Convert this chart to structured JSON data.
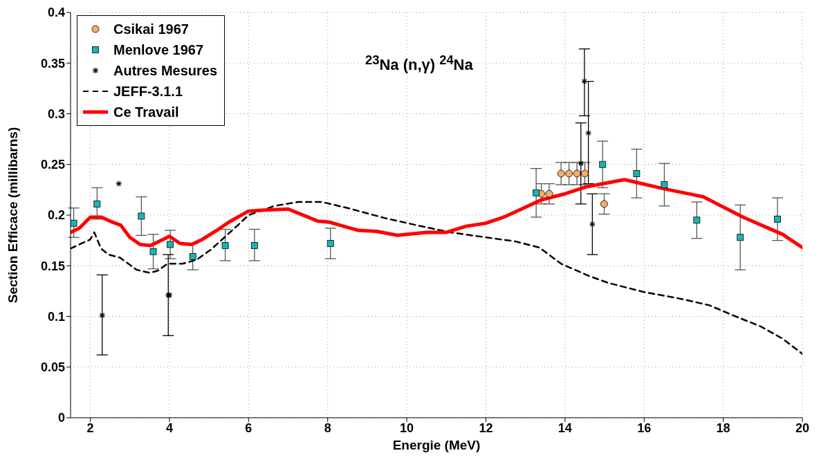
{
  "chart_data": {
    "type": "scatter",
    "title": "$^{23}$Na (n,γ) $^{24}$Na",
    "xlabel": "Energie (MeV)",
    "ylabel": "Section Efficace (millibarns)",
    "xlim": [
      1.5,
      20
    ],
    "xticks": [
      2,
      4,
      6,
      8,
      10,
      12,
      14,
      16,
      18,
      20
    ],
    "ylim": [
      0,
      0.4
    ],
    "yticks": [
      0,
      0.05,
      0.1,
      0.15,
      0.2,
      0.25,
      0.3,
      0.35,
      0.4
    ],
    "grid": true,
    "legend": "top left",
    "series": [
      {
        "name": "Csikai 1967",
        "marker": "circle",
        "color": "#f8ac66",
        "x": [
          13.4,
          13.6,
          13.9,
          14.1,
          14.3,
          14.5,
          14.99
        ],
        "values": [
          0.221,
          0.221,
          0.241,
          0.241,
          0.241,
          0.241,
          0.211
        ],
        "errors": [
          0.01,
          0.01,
          0.011,
          0.011,
          0.011,
          0.011,
          0.01
        ]
      },
      {
        "name": "Menlove 1967",
        "marker": "square",
        "color": "#17b5b5",
        "x": [
          1.58,
          2.17,
          3.29,
          3.59,
          4.02,
          4.59,
          5.41,
          6.15,
          8.07,
          13.27,
          14.95,
          15.81,
          16.51,
          17.33,
          18.43,
          19.37
        ],
        "values": [
          0.192,
          0.211,
          0.199,
          0.164,
          0.171,
          0.159,
          0.17,
          0.17,
          0.172,
          0.222,
          0.25,
          0.241,
          0.23,
          0.195,
          0.178,
          0.196
        ],
        "errors": [
          [
            0.178,
            0.207
          ],
          [
            0.196,
            0.227
          ],
          [
            0.18,
            0.218
          ],
          [
            0.147,
            0.181
          ],
          [
            0.157,
            0.185
          ],
          [
            0.146,
            0.172
          ],
          [
            0.155,
            0.186
          ],
          [
            0.155,
            0.186
          ],
          [
            0.157,
            0.187
          ],
          [
            0.198,
            0.246
          ],
          [
            0.227,
            0.273
          ],
          [
            0.217,
            0.265
          ],
          [
            0.209,
            0.251
          ],
          [
            0.177,
            0.213
          ],
          [
            0.146,
            0.21
          ],
          [
            0.175,
            0.217
          ]
        ]
      },
      {
        "name": "Autres Mesures",
        "marker": "cross",
        "color": "#000000",
        "x": [
          2.3,
          2.72,
          3.97,
          4.0,
          14.4,
          14.49,
          14.59,
          14.69
        ],
        "values": [
          0.101,
          0.231,
          0.121,
          0.121,
          0.251,
          0.332,
          0.281,
          0.191
        ],
        "errors": [
          [
            0.062,
            0.141
          ],
          null,
          [
            0.081,
            0.161
          ],
          null,
          [
            0.211,
            0.291
          ],
          [
            0.298,
            0.364
          ],
          [
            0.231,
            0.332
          ],
          [
            0.161,
            0.221
          ]
        ]
      },
      {
        "name": "JEFF-3.1.1",
        "type": "line",
        "line_style": "dashed",
        "color": "#000000",
        "x": [
          1.5,
          2.0,
          2.1,
          2.27,
          2.46,
          2.75,
          2.96,
          3.17,
          3.5,
          3.7,
          3.95,
          4.33,
          4.69,
          5.05,
          5.7,
          6.0,
          6.65,
          7.25,
          7.85,
          8.5,
          9.45,
          10.25,
          11.1,
          12.0,
          12.75,
          13.35,
          13.9,
          14.6,
          15.1,
          16.0,
          16.85,
          17.65,
          18.25,
          18.95,
          19.5,
          20
        ],
        "values": [
          0.167,
          0.176,
          0.183,
          0.167,
          0.161,
          0.158,
          0.152,
          0.146,
          0.143,
          0.145,
          0.152,
          0.152,
          0.156,
          0.166,
          0.189,
          0.2,
          0.209,
          0.213,
          0.213,
          0.207,
          0.197,
          0.19,
          0.183,
          0.178,
          0.174,
          0.168,
          0.152,
          0.14,
          0.133,
          0.124,
          0.118,
          0.111,
          0.101,
          0.09,
          0.078,
          0.063
        ]
      },
      {
        "name": "Ce Travail",
        "type": "line",
        "line_style": "solid",
        "color": "#ff0000",
        "x": [
          1.5,
          1.72,
          2.0,
          2.28,
          2.5,
          2.77,
          3.0,
          3.26,
          3.52,
          4.0,
          4.27,
          4.56,
          4.83,
          5.2,
          5.5,
          6.0,
          6.4,
          7.0,
          7.5,
          7.75,
          8.05,
          8.4,
          8.77,
          9.24,
          9.76,
          10.5,
          11.0,
          11.5,
          12.0,
          12.45,
          12.9,
          13.4,
          14.0,
          14.55,
          15.5,
          16.5,
          17.5,
          18.5,
          19.5,
          20
        ],
        "values": [
          0.183,
          0.187,
          0.198,
          0.198,
          0.194,
          0.19,
          0.178,
          0.171,
          0.17,
          0.179,
          0.172,
          0.171,
          0.176,
          0.185,
          0.193,
          0.204,
          0.205,
          0.206,
          0.198,
          0.194,
          0.193,
          0.189,
          0.185,
          0.184,
          0.18,
          0.183,
          0.183,
          0.189,
          0.192,
          0.198,
          0.206,
          0.215,
          0.221,
          0.228,
          0.235,
          0.226,
          0.218,
          0.198,
          0.181,
          0.168
        ]
      }
    ]
  }
}
